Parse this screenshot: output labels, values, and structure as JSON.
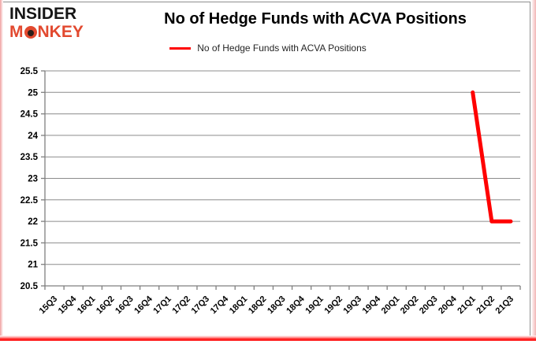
{
  "page": {
    "background": "#ffffff",
    "accent_red": "#ff0000"
  },
  "logo": {
    "top": "INSIDER",
    "monkey_m": "M",
    "monkey_rest": "NKEY",
    "brand_red": "#e2492f"
  },
  "header": {
    "title": "No of Hedge Funds with ACVA Positions"
  },
  "legend": {
    "label": "No of Hedge Funds with ACVA Positions",
    "color": "#ff0000"
  },
  "chart_data": {
    "type": "line",
    "title": "No of Hedge Funds with ACVA Positions",
    "categories": [
      "15Q3",
      "15Q4",
      "16Q1",
      "16Q2",
      "16Q3",
      "16Q4",
      "17Q1",
      "17Q2",
      "17Q3",
      "17Q4",
      "18Q1",
      "18Q2",
      "18Q3",
      "18Q4",
      "19Q1",
      "19Q2",
      "19Q3",
      "19Q4",
      "20Q1",
      "20Q2",
      "20Q3",
      "20Q4",
      "21Q1",
      "21Q2",
      "21Q3"
    ],
    "series": [
      {
        "name": "No of Hedge Funds with ACVA Positions",
        "color": "#ff0000",
        "values": [
          null,
          null,
          null,
          null,
          null,
          null,
          null,
          null,
          null,
          null,
          null,
          null,
          null,
          null,
          null,
          null,
          null,
          null,
          null,
          null,
          null,
          null,
          25,
          22,
          22
        ]
      }
    ],
    "ylim": [
      20.5,
      25.5
    ],
    "ytick_step": 0.5,
    "grid": true,
    "grid_color": "#8c8c8c",
    "axis_color": "#7f7f7f",
    "tick_label_color": "#000000",
    "legend_position": "top-center",
    "xlabel": "",
    "ylabel": ""
  }
}
